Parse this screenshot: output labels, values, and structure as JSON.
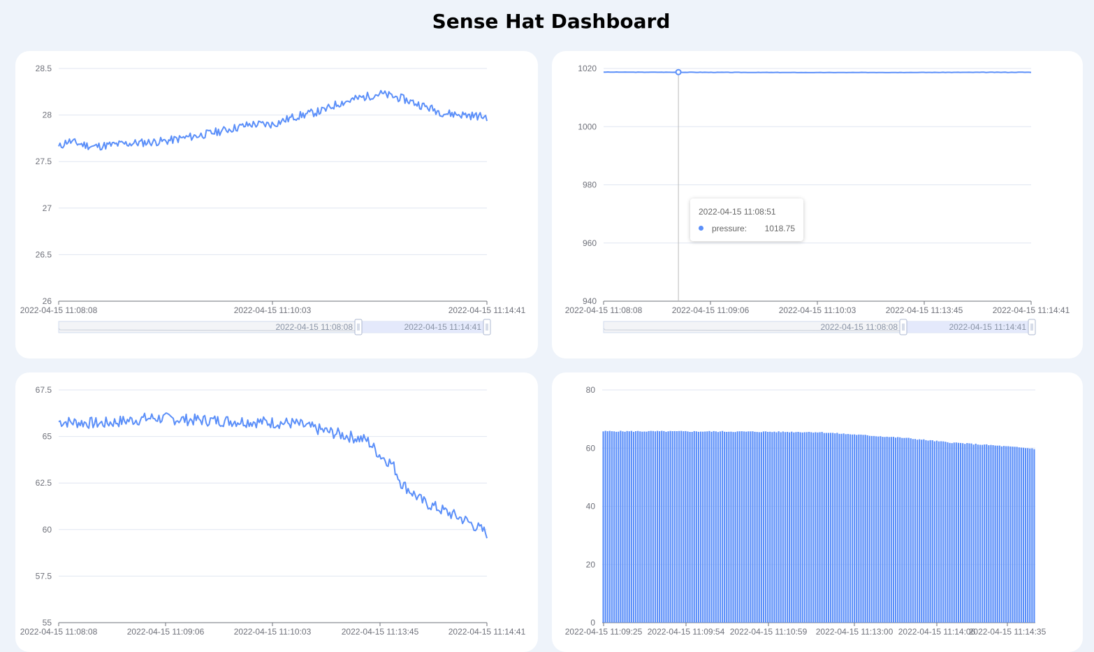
{
  "page": {
    "title": "Sense Hat Dashboard"
  },
  "colors": {
    "series": "#5b8ff9",
    "grid": "#e0e6f1",
    "axis": "#6e7079",
    "zoom_fill": "#e4e9fb",
    "zoom_bg": "#f3f4f7"
  },
  "chart_data": [
    {
      "id": "temperature",
      "type": "line",
      "ylim": [
        26,
        28.5
      ],
      "y_ticks": [
        "26",
        "26.5",
        "27",
        "27.5",
        "28",
        "28.5"
      ],
      "x_ticks": [
        "2022-04-15 11:08:08",
        "2022-04-15 11:10:03",
        "2022-04-15 11:14:41"
      ],
      "key_points": [
        [
          0,
          27.65
        ],
        [
          0.02,
          27.72
        ],
        [
          0.08,
          27.66
        ],
        [
          0.15,
          27.69
        ],
        [
          0.25,
          27.72
        ],
        [
          0.35,
          27.8
        ],
        [
          0.45,
          27.9
        ],
        [
          0.5,
          27.9
        ],
        [
          0.55,
          27.98
        ],
        [
          0.62,
          28.05
        ],
        [
          0.65,
          28.12
        ],
        [
          0.7,
          28.18
        ],
        [
          0.75,
          28.23
        ],
        [
          0.8,
          28.18
        ],
        [
          0.85,
          28.1
        ],
        [
          0.9,
          28.02
        ],
        [
          0.95,
          28.0
        ],
        [
          1.0,
          27.98
        ]
      ],
      "noise": 0.045,
      "zoom": {
        "start_label": "2022-04-15 11:08:08",
        "end_label": "2022-04-15 11:14:41"
      }
    },
    {
      "id": "pressure",
      "type": "line",
      "ylim": [
        940,
        1020
      ],
      "y_ticks": [
        "940",
        "960",
        "980",
        "1000",
        "1020"
      ],
      "x_ticks": [
        "2022-04-15 11:08:08",
        "2022-04-15 11:09:06",
        "2022-04-15 11:10:03",
        "2022-04-15 11:13:45",
        "2022-04-15 11:14:41"
      ],
      "key_points": [
        [
          0,
          1018.75
        ],
        [
          0.5,
          1018.6
        ],
        [
          1.0,
          1018.7
        ]
      ],
      "noise": 0.05,
      "tooltip": {
        "time": "2022-04-15 11:08:51",
        "series": "pressure:",
        "value": "1018.75",
        "x_frac": 0.175
      },
      "zoom": {
        "start_label": "2022-04-15 11:08:08",
        "end_label": "2022-04-15 11:14:41"
      }
    },
    {
      "id": "humidity",
      "type": "line",
      "ylim": [
        55,
        67.5
      ],
      "y_ticks": [
        "55",
        "57.5",
        "60",
        "62.5",
        "65",
        "67.5"
      ],
      "x_ticks": [
        "2022-04-15 11:08:08",
        "2022-04-15 11:09:06",
        "2022-04-15 11:10:03",
        "2022-04-15 11:13:45",
        "2022-04-15 11:14:41"
      ],
      "key_points": [
        [
          0,
          65.8
        ],
        [
          0.1,
          65.7
        ],
        [
          0.22,
          66.0
        ],
        [
          0.3,
          65.9
        ],
        [
          0.45,
          65.8
        ],
        [
          0.55,
          65.7
        ],
        [
          0.62,
          65.3
        ],
        [
          0.72,
          64.8
        ],
        [
          0.75,
          64.0
        ],
        [
          0.78,
          63.5
        ],
        [
          0.8,
          62.5
        ],
        [
          0.85,
          61.5
        ],
        [
          0.9,
          61.0
        ],
        [
          0.95,
          60.5
        ],
        [
          1.0,
          59.8
        ]
      ],
      "noise": 0.32,
      "seed": 7
    },
    {
      "id": "bar",
      "type": "bar",
      "ylim": [
        0,
        80
      ],
      "y_ticks": [
        "0",
        "20",
        "40",
        "60",
        "80"
      ],
      "x_ticks": [
        "2022-04-15 11:09:25",
        "2022-04-15 11:09:54",
        "2022-04-15 11:10:59",
        "2022-04-15 11:13:00",
        "2022-04-15 11:14:06",
        "2022-04-15 11:14:35"
      ],
      "bar_count": 200,
      "key_points": [
        [
          0,
          65.8
        ],
        [
          0.3,
          65.7
        ],
        [
          0.5,
          65.5
        ],
        [
          0.6,
          64.5
        ],
        [
          0.7,
          63.5
        ],
        [
          0.8,
          62.0
        ],
        [
          0.9,
          61.0
        ],
        [
          1.0,
          59.8
        ]
      ],
      "noise": 0.2
    }
  ]
}
